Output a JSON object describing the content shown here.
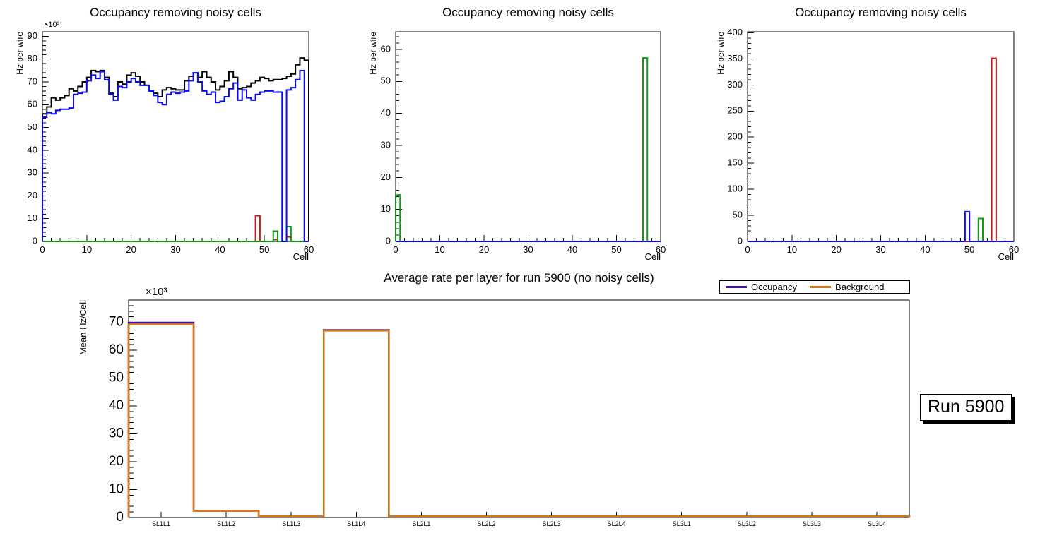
{
  "page": {
    "background": "#ffffff"
  },
  "run_label": "Run 5900",
  "legend": {
    "position": "top-right",
    "entries": [
      {
        "label": "Occupancy",
        "color": "#43109F"
      },
      {
        "label": "Background",
        "color": "#D4791A"
      }
    ]
  },
  "colors": {
    "black": "#000000",
    "blue": "#0A0AF0",
    "red": "#C81A1A",
    "green": "#0E9B0E",
    "violet": "#43109F",
    "orange": "#D4791A"
  },
  "chart_data": [
    {
      "type": "step-histogram",
      "title": "Occupancy removing noisy cells",
      "xlabel": "Cell",
      "ylabel": "Hz per wire",
      "y_multiplier": "×10³",
      "xlim": [
        0,
        60
      ],
      "ylim": [
        0,
        92
      ],
      "x_major": 10,
      "x_minor": 2,
      "y_major": 10,
      "y_minor": 2,
      "grid": false,
      "series": [
        {
          "name": "total_rate",
          "color": "#000000",
          "values": [
            56,
            59,
            63,
            62,
            63,
            64,
            67,
            66,
            68,
            70,
            72,
            75,
            74.5,
            75,
            72,
            65,
            63.5,
            70,
            69,
            73,
            74,
            72.5,
            70,
            68.5,
            66,
            65,
            63.5,
            66.5,
            67.5,
            67,
            66.5,
            66.5,
            70.5,
            72.5,
            74,
            72,
            74.5,
            72,
            70,
            66.5,
            68,
            70.5,
            74.5,
            72,
            67,
            67.5,
            68,
            69.5,
            70.5,
            72,
            71.5,
            70.5,
            71,
            71,
            71.5,
            72.5,
            73.5,
            77.5,
            80.5,
            79.5
          ]
        },
        {
          "name": "noisy_cells_red",
          "color": "#C81A1A",
          "values": [
            0,
            0,
            0,
            0,
            0,
            0,
            0,
            0,
            0,
            0,
            0,
            0,
            0,
            0,
            0,
            0,
            0,
            0,
            0,
            0,
            0,
            0,
            0,
            0,
            0,
            0,
            0,
            0,
            0,
            0,
            0,
            0,
            0,
            0,
            0,
            0,
            0,
            0,
            0,
            0,
            0,
            0,
            0,
            0,
            0,
            0,
            0,
            0,
            11.3,
            0,
            0,
            0,
            0.8,
            0,
            0,
            2,
            0,
            0,
            0,
            0
          ]
        },
        {
          "name": "removed_cells_green",
          "color": "#0E9B0E",
          "values": [
            0,
            0,
            0,
            0,
            0,
            0,
            0,
            0,
            0,
            0,
            0,
            0,
            0,
            0,
            0,
            0,
            0,
            0,
            0,
            0,
            0,
            0,
            0,
            0,
            0,
            0,
            0,
            0,
            0,
            0,
            0,
            0,
            0,
            0,
            0,
            0,
            0,
            0,
            0,
            0,
            0,
            0,
            0,
            0,
            0,
            0,
            0,
            0,
            0,
            0,
            0,
            0,
            4.5,
            0,
            0,
            6.5,
            0,
            0,
            0,
            0
          ]
        },
        {
          "name": "occupancy",
          "color": "#0A0AF0",
          "values": [
            54.5,
            56.5,
            56,
            57.5,
            58,
            58,
            58.5,
            64.5,
            65,
            65.5,
            70.5,
            73,
            71.5,
            74.5,
            71,
            64.5,
            62,
            68,
            67.5,
            70,
            71.5,
            70,
            68.5,
            68.5,
            66,
            64,
            61,
            60,
            64.5,
            65.5,
            65,
            65.5,
            66,
            70.5,
            74,
            70,
            66,
            64.5,
            65.5,
            61,
            61.5,
            63.5,
            67,
            69.5,
            62,
            66.5,
            63,
            62,
            64.5,
            65.5,
            66,
            66,
            65.5,
            65.5,
            0,
            66.5,
            67.5,
            71,
            75,
            0
          ]
        }
      ]
    },
    {
      "type": "step-histogram",
      "title": "Occupancy removing noisy cells",
      "xlabel": "Cell",
      "ylabel": "Hz per wire",
      "xlim": [
        0,
        60
      ],
      "ylim": [
        0,
        65.5
      ],
      "x_major": 10,
      "x_minor": 2,
      "y_major": 10,
      "y_minor": 2,
      "grid": false,
      "series": [
        {
          "name": "removed_cells_green",
          "color": "#0E9B0E",
          "values": [
            14.5,
            0,
            0,
            0,
            0,
            0,
            0,
            0,
            0,
            0,
            0,
            0,
            0,
            0,
            0,
            0,
            0,
            0,
            0,
            0,
            0,
            0,
            0,
            0,
            0,
            0,
            0,
            0,
            0,
            0,
            0,
            0,
            0,
            0,
            0,
            0,
            0,
            0,
            0,
            0,
            0,
            0,
            0,
            0,
            0,
            0,
            0,
            0,
            0,
            0,
            0,
            0,
            0,
            0,
            0,
            0,
            57.3,
            0,
            0,
            0
          ]
        },
        {
          "name": "occupancy",
          "color": "#0A0AF0",
          "values": [
            0,
            0,
            0,
            0,
            0,
            0,
            0,
            0,
            0,
            0,
            0,
            0,
            0,
            0,
            0,
            0,
            0,
            0,
            0,
            0,
            0,
            0,
            0,
            0,
            0,
            0,
            0,
            0,
            0,
            0,
            0,
            0,
            0,
            0,
            0,
            0,
            0,
            0,
            0,
            0,
            0,
            0,
            0,
            0,
            0,
            0,
            0,
            0,
            0,
            0,
            0,
            0,
            0,
            0,
            0,
            0,
            0,
            0,
            0,
            0
          ]
        }
      ]
    },
    {
      "type": "step-histogram",
      "title": "Occupancy removing noisy cells",
      "xlabel": "Cell",
      "ylabel": "Hz per wire",
      "xlim": [
        0,
        60
      ],
      "ylim": [
        0,
        402
      ],
      "x_major": 10,
      "x_minor": 2,
      "y_major": 50,
      "y_minor": 10,
      "grid": false,
      "series": [
        {
          "name": "removed_cells_green",
          "color": "#0E9B0E",
          "values": [
            0,
            0,
            0,
            0,
            0,
            0,
            0,
            0,
            0,
            0,
            0,
            0,
            0,
            0,
            0,
            0,
            0,
            0,
            0,
            0,
            0,
            0,
            0,
            0,
            0,
            0,
            0,
            0,
            0,
            0,
            0,
            0,
            0,
            0,
            0,
            0,
            0,
            0,
            0,
            0,
            0,
            0,
            0,
            0,
            0,
            0,
            0,
            0,
            0,
            0,
            0,
            0,
            44,
            0,
            0,
            0,
            0,
            0,
            0,
            0
          ]
        },
        {
          "name": "noisy_cells_red",
          "color": "#C81A1A",
          "values": [
            0,
            0,
            0,
            0,
            0,
            0,
            0,
            0,
            0,
            0,
            0,
            0,
            0,
            0,
            0,
            0,
            0,
            0,
            0,
            0,
            0,
            0,
            0,
            0,
            0,
            0,
            0,
            0,
            0,
            0,
            0,
            0,
            0,
            0,
            0,
            0,
            0,
            0,
            0,
            0,
            0,
            0,
            0,
            0,
            0,
            0,
            0,
            0,
            0,
            0,
            0,
            0,
            0,
            0,
            0,
            351,
            0,
            0,
            0,
            0
          ]
        },
        {
          "name": "occupancy",
          "color": "#0A0AF0",
          "values": [
            0,
            0,
            0,
            0,
            0,
            0,
            0,
            0,
            0,
            0,
            0,
            0,
            0,
            0,
            0,
            0,
            0,
            0,
            0,
            0,
            0,
            0,
            0,
            0,
            0,
            0,
            0,
            0,
            0,
            0,
            0,
            0,
            0,
            0,
            0,
            0,
            0,
            0,
            0,
            0,
            0,
            0,
            0,
            0,
            0,
            0,
            0,
            0,
            0,
            57,
            0,
            0,
            0,
            0,
            0,
            0,
            0,
            0,
            0,
            0
          ]
        }
      ]
    },
    {
      "type": "step-histogram-categorical",
      "title": "Average rate per layer for run 5900 (no noisy cells)",
      "xlabel": "",
      "ylabel": "Mean Hz/Cell",
      "y_multiplier": "×10³",
      "categories": [
        "SL1L1",
        "SL1L2",
        "SL1L3",
        "SL1L4",
        "SL2L1",
        "SL2L2",
        "SL2L3",
        "SL2L4",
        "SL3L1",
        "SL3L2",
        "SL3L3",
        "SL3L4"
      ],
      "ylim": [
        0,
        78
      ],
      "y_major": 10,
      "y_minor": 2,
      "grid": false,
      "legend": true,
      "series": [
        {
          "name": "Occupancy",
          "color": "#43109F",
          "values": [
            69.9,
            2.4,
            0.4,
            67.2,
            0.4,
            0.4,
            0.4,
            0.4,
            0.4,
            0.4,
            0.4,
            0.4
          ]
        },
        {
          "name": "Background",
          "color": "#D4791A",
          "values": [
            69.3,
            2.4,
            0.4,
            67.0,
            0.4,
            0.4,
            0.4,
            0.4,
            0.4,
            0.4,
            0.4,
            0.4
          ]
        }
      ]
    }
  ]
}
